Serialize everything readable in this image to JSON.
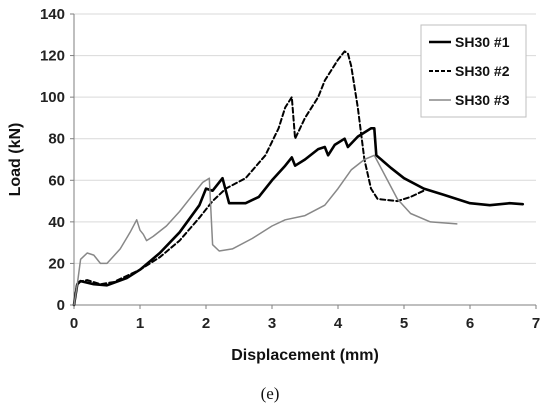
{
  "chart_data": {
    "type": "line",
    "xlabel": "Displacement (mm)",
    "ylabel": "Load (kN)",
    "xlim": [
      0,
      7
    ],
    "ylim": [
      0,
      140
    ],
    "x_ticks": [
      "0",
      "1",
      "2",
      "3",
      "4",
      "5",
      "6",
      "7"
    ],
    "y_ticks": [
      "0",
      "20",
      "40",
      "60",
      "80",
      "100",
      "120",
      "140"
    ],
    "grid": "horizontal",
    "legend_position": "top-right",
    "caption": "(e)",
    "series": [
      {
        "name": "SH30 #1",
        "color": "#000000",
        "style": "solid",
        "points": [
          [
            0,
            0
          ],
          [
            0.05,
            10
          ],
          [
            0.1,
            11.5
          ],
          [
            0.3,
            10
          ],
          [
            0.5,
            9.5
          ],
          [
            0.8,
            13
          ],
          [
            1.0,
            17
          ],
          [
            1.3,
            25
          ],
          [
            1.6,
            35
          ],
          [
            1.9,
            48
          ],
          [
            2.0,
            56
          ],
          [
            2.1,
            55
          ],
          [
            2.25,
            61
          ],
          [
            2.35,
            49
          ],
          [
            2.6,
            49
          ],
          [
            2.8,
            52
          ],
          [
            3.0,
            60
          ],
          [
            3.2,
            67
          ],
          [
            3.3,
            71
          ],
          [
            3.35,
            67
          ],
          [
            3.5,
            70
          ],
          [
            3.7,
            75
          ],
          [
            3.8,
            76
          ],
          [
            3.85,
            72
          ],
          [
            3.95,
            77
          ],
          [
            4.1,
            80
          ],
          [
            4.15,
            76
          ],
          [
            4.3,
            81
          ],
          [
            4.4,
            83
          ],
          [
            4.5,
            85
          ],
          [
            4.55,
            85
          ],
          [
            4.58,
            72
          ],
          [
            4.8,
            66
          ],
          [
            5.0,
            61
          ],
          [
            5.3,
            56
          ],
          [
            5.6,
            53
          ],
          [
            6.0,
            49
          ],
          [
            6.3,
            48
          ],
          [
            6.6,
            49
          ],
          [
            6.8,
            48.5
          ]
        ]
      },
      {
        "name": "SH30 #2",
        "color": "#000000",
        "style": "dashed",
        "points": [
          [
            0,
            0
          ],
          [
            0.05,
            11
          ],
          [
            0.2,
            12
          ],
          [
            0.4,
            10
          ],
          [
            0.6,
            11
          ],
          [
            0.8,
            14
          ],
          [
            1.0,
            17
          ],
          [
            1.3,
            23
          ],
          [
            1.6,
            31
          ],
          [
            1.9,
            42
          ],
          [
            2.1,
            50
          ],
          [
            2.3,
            56
          ],
          [
            2.6,
            61
          ],
          [
            2.9,
            72
          ],
          [
            3.1,
            85
          ],
          [
            3.2,
            95
          ],
          [
            3.3,
            100
          ],
          [
            3.35,
            80
          ],
          [
            3.5,
            90
          ],
          [
            3.7,
            100
          ],
          [
            3.8,
            108
          ],
          [
            3.9,
            113
          ],
          [
            4.0,
            118
          ],
          [
            4.1,
            122
          ],
          [
            4.15,
            121
          ],
          [
            4.2,
            115
          ],
          [
            4.3,
            95
          ],
          [
            4.4,
            70
          ],
          [
            4.5,
            56
          ],
          [
            4.6,
            51
          ],
          [
            4.9,
            50
          ],
          [
            5.1,
            52
          ],
          [
            5.3,
            55
          ]
        ]
      },
      {
        "name": "SH30 #3",
        "color": "#888888",
        "style": "solid",
        "points": [
          [
            0,
            0
          ],
          [
            0.05,
            10
          ],
          [
            0.1,
            22
          ],
          [
            0.2,
            25
          ],
          [
            0.3,
            24
          ],
          [
            0.4,
            20
          ],
          [
            0.5,
            20
          ],
          [
            0.7,
            27
          ],
          [
            0.85,
            35
          ],
          [
            0.95,
            41
          ],
          [
            1.0,
            36
          ],
          [
            1.05,
            34
          ],
          [
            1.1,
            31
          ],
          [
            1.2,
            33
          ],
          [
            1.4,
            38
          ],
          [
            1.6,
            45
          ],
          [
            1.8,
            53
          ],
          [
            1.95,
            59
          ],
          [
            2.05,
            61
          ],
          [
            2.1,
            29
          ],
          [
            2.2,
            26
          ],
          [
            2.4,
            27
          ],
          [
            2.7,
            32
          ],
          [
            3.0,
            38
          ],
          [
            3.2,
            41
          ],
          [
            3.5,
            43
          ],
          [
            3.8,
            48
          ],
          [
            4.0,
            56
          ],
          [
            4.2,
            65
          ],
          [
            4.4,
            70
          ],
          [
            4.55,
            72
          ],
          [
            4.7,
            63
          ],
          [
            4.9,
            51
          ],
          [
            5.1,
            44
          ],
          [
            5.4,
            40
          ],
          [
            5.8,
            39
          ]
        ]
      }
    ]
  }
}
